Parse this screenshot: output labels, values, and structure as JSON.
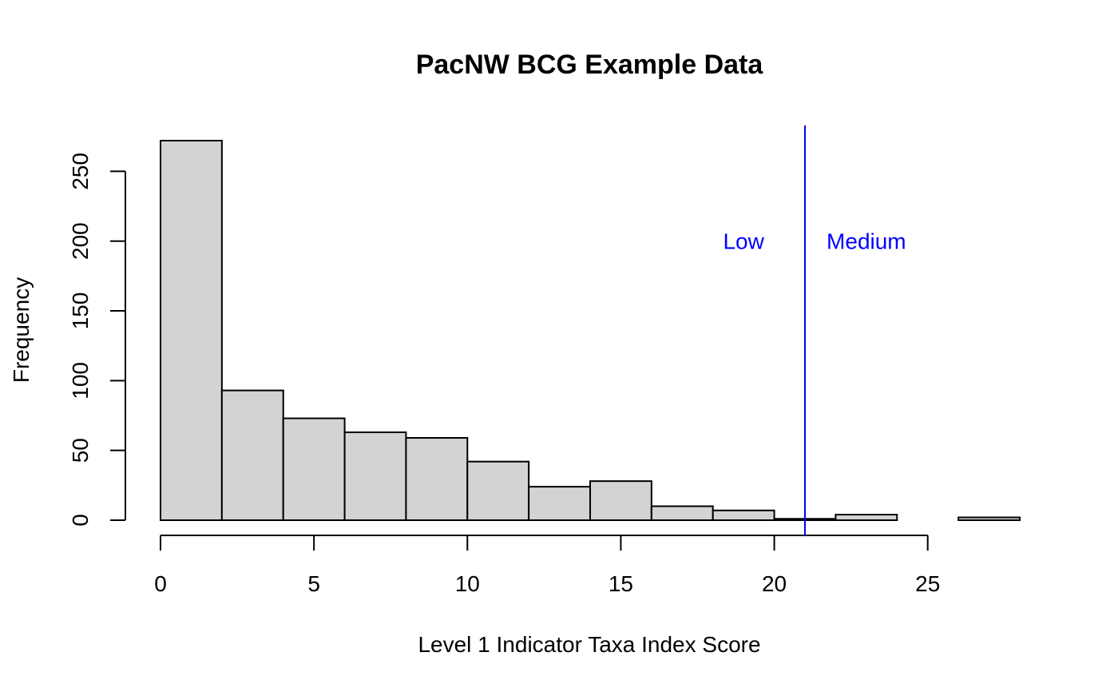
{
  "chart_data": {
    "type": "bar",
    "title": "PacNW BCG Example Data",
    "xlabel": "Level 1 Indicator Taxa Index Score",
    "ylabel": "Frequency",
    "bins": [
      {
        "start": 0,
        "end": 2,
        "value": 272
      },
      {
        "start": 2,
        "end": 4,
        "value": 93
      },
      {
        "start": 4,
        "end": 6,
        "value": 73
      },
      {
        "start": 6,
        "end": 8,
        "value": 63
      },
      {
        "start": 8,
        "end": 10,
        "value": 59
      },
      {
        "start": 10,
        "end": 12,
        "value": 42
      },
      {
        "start": 12,
        "end": 14,
        "value": 24
      },
      {
        "start": 14,
        "end": 16,
        "value": 28
      },
      {
        "start": 16,
        "end": 18,
        "value": 10
      },
      {
        "start": 18,
        "end": 20,
        "value": 7
      },
      {
        "start": 20,
        "end": 22,
        "value": 1
      },
      {
        "start": 22,
        "end": 24,
        "value": 4
      },
      {
        "start": 24,
        "end": 26,
        "value": 0
      },
      {
        "start": 26,
        "end": 28,
        "value": 2
      }
    ],
    "xlim": [
      0,
      28
    ],
    "ylim": [
      0,
      272
    ],
    "x_ticks": [
      0,
      5,
      10,
      15,
      20,
      25
    ],
    "x_tick_labels": [
      "0",
      "5",
      "10",
      "15",
      "20",
      "25"
    ],
    "y_ticks": [
      0,
      50,
      100,
      150,
      200,
      250
    ],
    "y_tick_labels": [
      "0",
      "50",
      "100",
      "150",
      "200",
      "250"
    ],
    "bar_color": "#d3d3d3",
    "grid": false,
    "reference_line": {
      "x": 21,
      "color": "#0000ff"
    },
    "annotations": [
      {
        "text": "Low",
        "x": 19,
        "y": 200,
        "color": "#0000ff"
      },
      {
        "text": "Medium",
        "x": 23,
        "y": 200,
        "color": "#0000ff"
      }
    ]
  }
}
